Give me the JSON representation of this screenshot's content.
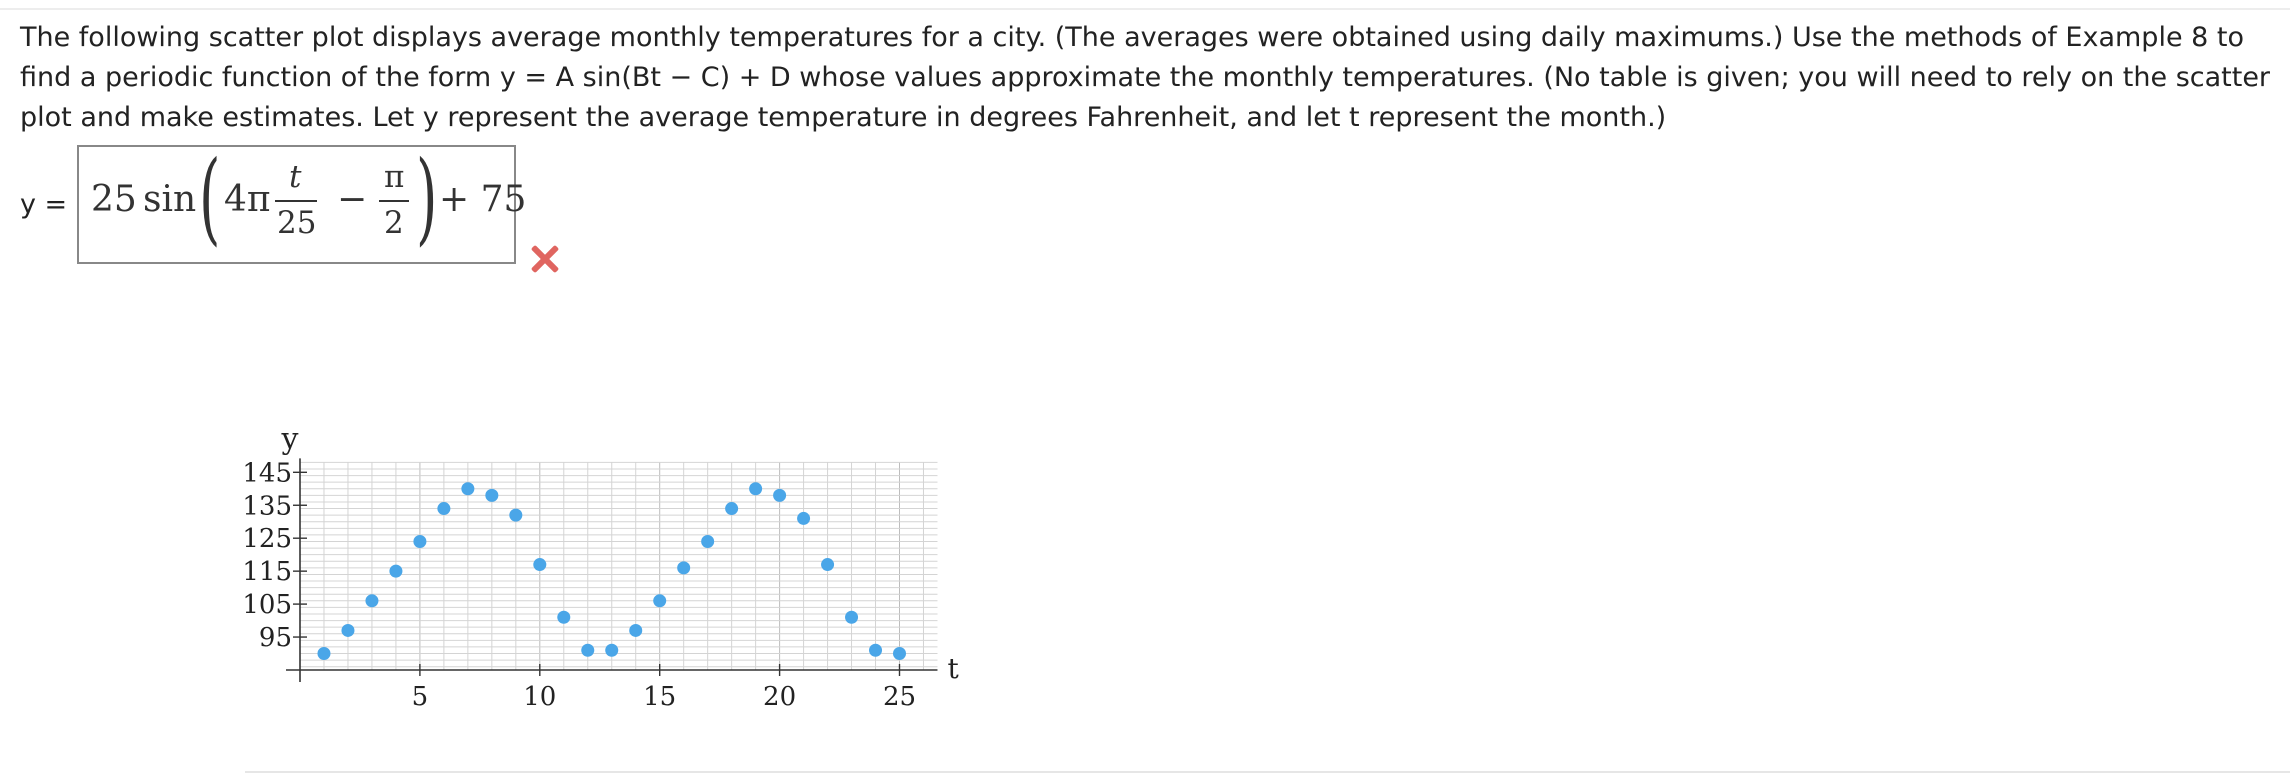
{
  "question": {
    "text": "The following scatter plot displays average monthly temperatures for a city. (The averages were obtained using daily maximums.) Use the methods of Example 8 to find a periodic function of the form y = A sin(Bt − C) + D whose values approximate the monthly temperatures. (No table is given; you will need to rely on the scatter plot and make estimates. Let y represent the average temperature in degrees Fahrenheit, and let t represent the month.)"
  },
  "answer": {
    "label": "y =",
    "amplitude": "25",
    "func": "sin",
    "coef": "4π",
    "frac1_num": "t",
    "frac1_den": "25",
    "minus": "−",
    "frac2_num": "π",
    "frac2_den": "2",
    "plus": "+ 75",
    "status": "incorrect",
    "status_icon": "cross-icon",
    "status_color": "#e06560"
  },
  "chart_data": {
    "type": "scatter",
    "xlabel": "t",
    "ylabel": "y",
    "xlim": [
      0,
      26
    ],
    "ylim": [
      85,
      148
    ],
    "xticks": [
      5,
      10,
      15,
      20,
      25
    ],
    "yticks": [
      95,
      105,
      115,
      125,
      135,
      145
    ],
    "grid": true,
    "point_color": "#4aa6e8",
    "series": [
      {
        "x": [
          1,
          2,
          3,
          4,
          5,
          6,
          7,
          8,
          9,
          10,
          11,
          12,
          13,
          14,
          15,
          16,
          17,
          18,
          19,
          20,
          21,
          22,
          23,
          24,
          25
        ],
        "y": [
          90,
          97,
          106,
          115,
          124,
          134,
          140,
          138,
          132,
          117,
          101,
          91,
          91,
          97,
          106,
          116,
          124,
          134,
          140,
          138,
          131,
          117,
          101,
          91,
          90
        ]
      }
    ]
  }
}
